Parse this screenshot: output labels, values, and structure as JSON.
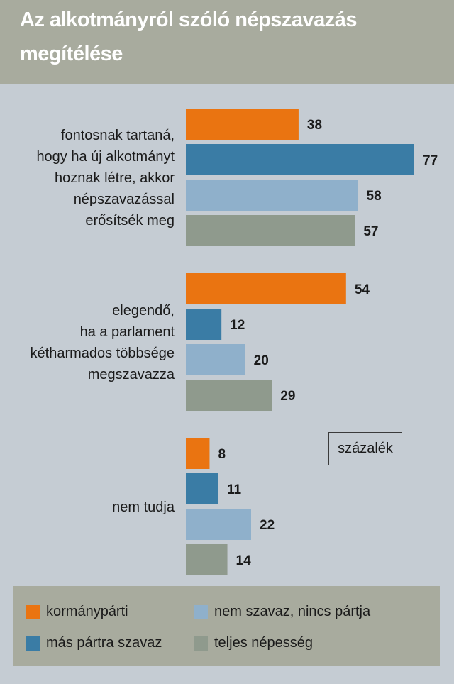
{
  "title": {
    "line1": "Az alkotmányról szóló népszavazás",
    "line2": "megítélése"
  },
  "unit_label": "százalék",
  "colors": {
    "kormanyparti": "#ea7411",
    "mas_partra": "#3a7ca5",
    "nem_szavaz": "#8fb0cb",
    "teljes": "#8f9a8d"
  },
  "legend": [
    {
      "label": "kormánypárti",
      "color": "#ea7411"
    },
    {
      "label": "más pártra szavaz",
      "color": "#3a7ca5"
    },
    {
      "label": "nem szavaz, nincs pártja",
      "color": "#8fb0cb"
    },
    {
      "label": "teljes népesség",
      "color": "#8f9a8d"
    }
  ],
  "chart_data": {
    "type": "bar",
    "orientation": "horizontal",
    "unit": "százalék",
    "categories": [
      [
        "fontosnak tartaná,",
        "hogy ha új alkotmányt",
        "hoznak létre, akkor",
        "népszavazással",
        "erősítsék meg"
      ],
      [
        "elegendő,",
        "ha a parlament",
        "kétharmados többsége",
        "megszavazza"
      ],
      [
        "nem tudja"
      ]
    ],
    "series": [
      {
        "name": "kormánypárti",
        "color": "#ea7411",
        "values": [
          38,
          54,
          8
        ]
      },
      {
        "name": "más pártra szavaz",
        "color": "#3a7ca5",
        "values": [
          77,
          12,
          11
        ]
      },
      {
        "name": "nem szavaz, nincs pártja",
        "color": "#8fb0cb",
        "values": [
          58,
          20,
          22
        ]
      },
      {
        "name": "teljes népesség",
        "color": "#8f9a8d",
        "values": [
          57,
          29,
          14
        ]
      }
    ],
    "xlim": [
      0,
      77
    ],
    "grid": false,
    "legend_position": "bottom"
  }
}
